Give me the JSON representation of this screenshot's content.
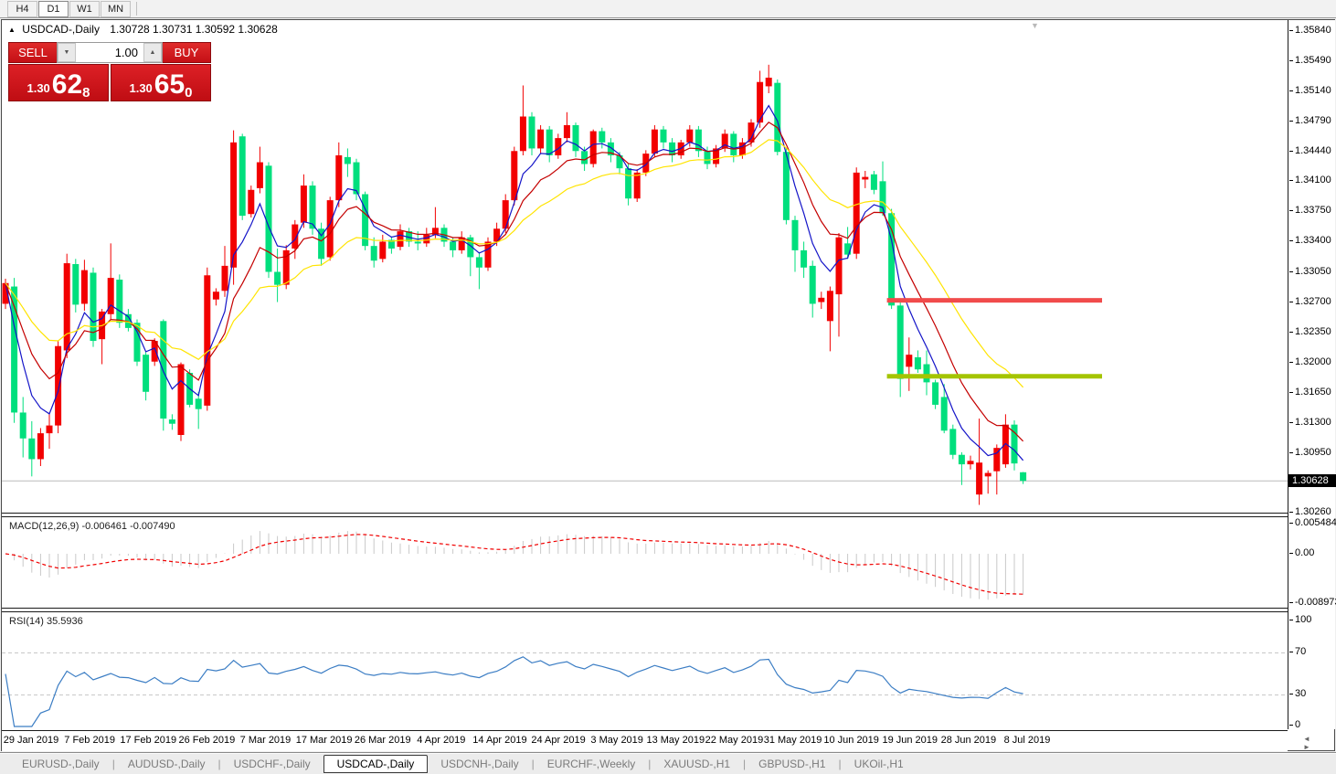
{
  "toolbar": {
    "timeframes": [
      {
        "label": "H4",
        "active": false
      },
      {
        "label": "D1",
        "active": true
      },
      {
        "label": "W1",
        "active": false
      },
      {
        "label": "MN",
        "active": false
      }
    ]
  },
  "icons": {
    "collapse": "▲",
    "chart_shift": "▼",
    "spinner_up": "▲",
    "spinner_down": "▼",
    "scroll_arrows": "◄ ►"
  },
  "window": {
    "title_symbol": "USDCAD-,Daily",
    "title_ohlc": "1.30728 1.30731 1.30592 1.30628"
  },
  "trade_panel": {
    "sell_label": "SELL",
    "buy_label": "BUY",
    "volume": "1.00",
    "sell_price": {
      "prefix": "1.30",
      "main": "62",
      "sup": "8"
    },
    "buy_price": {
      "prefix": "1.30",
      "main": "65",
      "sup": "0"
    }
  },
  "tabs": {
    "separator": "|",
    "active_index": 3,
    "items": [
      "EURUSD-,Daily",
      "AUDUSD-,Daily",
      "USDCHF-,Daily",
      "USDCAD-,Daily",
      "USDCNH-,Daily",
      "EURCHF-,Weekly",
      "XAUUSD-,H1",
      "GBPUSD-,H1",
      "UKOil-,H1"
    ]
  },
  "chart_data": {
    "type": "candlestick",
    "symbol": "USDCAD-",
    "timeframe": "Daily",
    "colors": {
      "bull": "#f20000",
      "bear": "#00df7d",
      "ma_fast": "#1414c8",
      "ma_mid": "#c40000",
      "ma_slow": "#ffe400",
      "macd_hist": "#c9c9c9",
      "macd_signal": "#f00000",
      "rsi": "#3b7dc4",
      "rsi_levels": "#c8c8c8",
      "bid_line": "#bcbcbc",
      "trend_red": "#f14b4b",
      "trend_olive": "#a4c400"
    },
    "price_axis": {
      "labels": [
        "1.35840",
        "1.35490",
        "1.35140",
        "1.34790",
        "1.34440",
        "1.34100",
        "1.33750",
        "1.33400",
        "1.33050",
        "1.32700",
        "1.32350",
        "1.32000",
        "1.31650",
        "1.31300",
        "1.30950",
        "1.30260"
      ],
      "top_value": 1.3584,
      "bottom_value": 1.3026,
      "current": "1.30628",
      "current_value": 1.30628
    },
    "time_axis": [
      "29 Jan 2019",
      "7 Feb 2019",
      "17 Feb 2019",
      "26 Feb 2019",
      "7 Mar 2019",
      "17 Mar 2019",
      "26 Mar 2019",
      "4 Apr 2019",
      "14 Apr 2019",
      "24 Apr 2019",
      "3 May 2019",
      "13 May 2019",
      "22 May 2019",
      "31 May 2019",
      "10 Jun 2019",
      "19 Jun 2019",
      "28 Jun 2019",
      "8 Jul 2019"
    ],
    "ohlc": [
      [
        1.3268,
        1.3297,
        1.3262,
        1.3292
      ],
      [
        1.3288,
        1.3298,
        1.313,
        1.3142
      ],
      [
        1.3142,
        1.316,
        1.309,
        1.3112
      ],
      [
        1.3112,
        1.3132,
        1.3068,
        1.3088
      ],
      [
        1.3088,
        1.3124,
        1.308,
        1.3118
      ],
      [
        1.3118,
        1.3142,
        1.31,
        1.3127
      ],
      [
        1.3127,
        1.3225,
        1.3118,
        1.3219
      ],
      [
        1.3214,
        1.3326,
        1.3205,
        1.3315
      ],
      [
        1.3314,
        1.332,
        1.3258,
        1.3267
      ],
      [
        1.3268,
        1.3319,
        1.326,
        1.3307
      ],
      [
        1.3304,
        1.331,
        1.3218,
        1.3225
      ],
      [
        1.3227,
        1.3262,
        1.3198,
        1.3259
      ],
      [
        1.3256,
        1.3338,
        1.325,
        1.3298
      ],
      [
        1.3296,
        1.3302,
        1.324,
        1.3246
      ],
      [
        1.3256,
        1.3262,
        1.3236,
        1.324
      ],
      [
        1.3246,
        1.325,
        1.3196,
        1.3201
      ],
      [
        1.3209,
        1.3212,
        1.3156,
        1.3166
      ],
      [
        1.3201,
        1.3228,
        1.3196,
        1.3225
      ],
      [
        1.3248,
        1.325,
        1.3121,
        1.3135
      ],
      [
        1.3134,
        1.314,
        1.3122,
        1.3129
      ],
      [
        1.3116,
        1.32,
        1.3109,
        1.3198
      ],
      [
        1.3188,
        1.3192,
        1.3148,
        1.3151
      ],
      [
        1.3158,
        1.3166,
        1.3123,
        1.3146
      ],
      [
        1.315,
        1.331,
        1.3144,
        1.3301
      ],
      [
        1.3273,
        1.3286,
        1.3266,
        1.3282
      ],
      [
        1.3283,
        1.3335,
        1.3276,
        1.3312
      ],
      [
        1.331,
        1.3469,
        1.329,
        1.3455
      ],
      [
        1.3462,
        1.3465,
        1.3365,
        1.337
      ],
      [
        1.3372,
        1.3405,
        1.3368,
        1.34
      ],
      [
        1.3402,
        1.345,
        1.3396,
        1.3432
      ],
      [
        1.3428,
        1.3432,
        1.3298,
        1.3305
      ],
      [
        1.3305,
        1.3332,
        1.327,
        1.329
      ],
      [
        1.329,
        1.3336,
        1.3285,
        1.333
      ],
      [
        1.3332,
        1.3365,
        1.332,
        1.336
      ],
      [
        1.3362,
        1.3418,
        1.3356,
        1.3405
      ],
      [
        1.3405,
        1.341,
        1.3348,
        1.3355
      ],
      [
        1.3355,
        1.3362,
        1.3312,
        1.332
      ],
      [
        1.3322,
        1.3392,
        1.3318,
        1.3388
      ],
      [
        1.3388,
        1.3455,
        1.338,
        1.344
      ],
      [
        1.3438,
        1.3448,
        1.3415,
        1.343
      ],
      [
        1.3432,
        1.3436,
        1.3388,
        1.3395
      ],
      [
        1.3395,
        1.3398,
        1.333,
        1.3335
      ],
      [
        1.3335,
        1.3345,
        1.331,
        1.3318
      ],
      [
        1.332,
        1.3348,
        1.3316,
        1.334
      ],
      [
        1.3342,
        1.3346,
        1.3326,
        1.3332
      ],
      [
        1.3334,
        1.336,
        1.333,
        1.3352
      ],
      [
        1.3352,
        1.3356,
        1.3334,
        1.334
      ],
      [
        1.334,
        1.3352,
        1.333,
        1.3338
      ],
      [
        1.3338,
        1.3356,
        1.3334,
        1.3348
      ],
      [
        1.3348,
        1.338,
        1.3344,
        1.3356
      ],
      [
        1.3356,
        1.336,
        1.3334,
        1.334
      ],
      [
        1.334,
        1.3345,
        1.3322,
        1.333
      ],
      [
        1.333,
        1.3352,
        1.3326,
        1.3345
      ],
      [
        1.3345,
        1.3348,
        1.33,
        1.3322
      ],
      [
        1.3322,
        1.3328,
        1.3285,
        1.331
      ],
      [
        1.331,
        1.3345,
        1.3306,
        1.334
      ],
      [
        1.334,
        1.3362,
        1.3335,
        1.3355
      ],
      [
        1.3355,
        1.3395,
        1.335,
        1.3388
      ],
      [
        1.3388,
        1.345,
        1.3382,
        1.3445
      ],
      [
        1.3445,
        1.3521,
        1.344,
        1.3485
      ],
      [
        1.3485,
        1.349,
        1.344,
        1.3448
      ],
      [
        1.3448,
        1.3475,
        1.3442,
        1.347
      ],
      [
        1.347,
        1.3474,
        1.3432,
        1.344
      ],
      [
        1.344,
        1.3465,
        1.3436,
        1.346
      ],
      [
        1.346,
        1.349,
        1.3455,
        1.3475
      ],
      [
        1.3475,
        1.3478,
        1.3438,
        1.3445
      ],
      [
        1.3445,
        1.345,
        1.3422,
        1.343
      ],
      [
        1.343,
        1.347,
        1.3426,
        1.3468
      ],
      [
        1.3468,
        1.3472,
        1.3448,
        1.3455
      ],
      [
        1.3455,
        1.346,
        1.3432,
        1.344
      ],
      [
        1.344,
        1.3444,
        1.3418,
        1.3425
      ],
      [
        1.3425,
        1.343,
        1.3382,
        1.339
      ],
      [
        1.339,
        1.3424,
        1.3386,
        1.342
      ],
      [
        1.342,
        1.3446,
        1.3416,
        1.3442
      ],
      [
        1.3442,
        1.3475,
        1.3438,
        1.347
      ],
      [
        1.347,
        1.3474,
        1.3448,
        1.3455
      ],
      [
        1.3455,
        1.346,
        1.3432,
        1.344
      ],
      [
        1.344,
        1.3458,
        1.3436,
        1.3455
      ],
      [
        1.3455,
        1.3475,
        1.345,
        1.347
      ],
      [
        1.347,
        1.3474,
        1.3438,
        1.3445
      ],
      [
        1.3445,
        1.345,
        1.3424,
        1.343
      ],
      [
        1.343,
        1.3452,
        1.3426,
        1.3448
      ],
      [
        1.3448,
        1.347,
        1.3444,
        1.3465
      ],
      [
        1.3465,
        1.3468,
        1.3432,
        1.344
      ],
      [
        1.344,
        1.346,
        1.3436,
        1.3455
      ],
      [
        1.3455,
        1.3482,
        1.345,
        1.3478
      ],
      [
        1.3478,
        1.3538,
        1.3472,
        1.3525
      ],
      [
        1.352,
        1.3545,
        1.3512,
        1.353
      ],
      [
        1.3524,
        1.3528,
        1.344,
        1.3444
      ],
      [
        1.3444,
        1.3448,
        1.336,
        1.3365
      ],
      [
        1.3365,
        1.337,
        1.3305,
        1.333
      ],
      [
        1.333,
        1.334,
        1.3298,
        1.331
      ],
      [
        1.3312,
        1.3318,
        1.3252,
        1.3268
      ],
      [
        1.327,
        1.3282,
        1.3262,
        1.3275
      ],
      [
        1.3248,
        1.3288,
        1.3213,
        1.3283
      ],
      [
        1.3279,
        1.335,
        1.323,
        1.3345
      ],
      [
        1.3338,
        1.3357,
        1.332,
        1.3325
      ],
      [
        1.3326,
        1.3426,
        1.332,
        1.342
      ],
      [
        1.3412,
        1.3422,
        1.3402,
        1.3415
      ],
      [
        1.3418,
        1.3422,
        1.3395,
        1.34
      ],
      [
        1.341,
        1.3433,
        1.337,
        1.3373
      ],
      [
        1.3373,
        1.3378,
        1.3262,
        1.3266
      ],
      [
        1.3266,
        1.327,
        1.316,
        1.3181
      ],
      [
        1.3195,
        1.3229,
        1.3167,
        1.3209
      ],
      [
        1.3206,
        1.3214,
        1.3188,
        1.3192
      ],
      [
        1.3198,
        1.3214,
        1.3162,
        1.3177
      ],
      [
        1.3177,
        1.318,
        1.3146,
        1.3151
      ],
      [
        1.316,
        1.3175,
        1.3118,
        1.3121
      ],
      [
        1.3123,
        1.3128,
        1.3088,
        1.3093
      ],
      [
        1.3093,
        1.3096,
        1.3058,
        1.3082
      ],
      [
        1.3082,
        1.3092,
        1.3076,
        1.3086
      ],
      [
        1.3047,
        1.3135,
        1.3035,
        1.3084
      ],
      [
        1.3068,
        1.3075,
        1.3048,
        1.3072
      ],
      [
        1.3074,
        1.3105,
        1.3047,
        1.3101
      ],
      [
        1.3082,
        1.314,
        1.3078,
        1.3128
      ],
      [
        1.3128,
        1.3133,
        1.3075,
        1.3083
      ],
      [
        1.30728,
        1.30731,
        1.30592,
        1.30628
      ]
    ],
    "moving_averages": [
      {
        "name": "ma-fast",
        "period": 5,
        "method": "ema",
        "color_key": "ma_fast"
      },
      {
        "name": "ma-mid",
        "period": 10,
        "method": "ema",
        "color_key": "ma_mid"
      },
      {
        "name": "ma-slow",
        "period": 21,
        "method": "ema",
        "color_key": "ma_slow"
      }
    ],
    "trendlines": [
      {
        "name": "resistance",
        "price": 1.3272,
        "from_bar": 101,
        "to_bar": 125,
        "color_key": "trend_red"
      },
      {
        "name": "support",
        "price": 1.3184,
        "from_bar": 101,
        "to_bar": 125,
        "color_key": "trend_olive"
      }
    ],
    "indicators": {
      "macd": {
        "label": "MACD(12,26,9) -0.006461 -0.007490",
        "fast": 12,
        "slow": 26,
        "signal_period": 9,
        "value": -0.006461,
        "signal_value": -0.00749,
        "axis_labels": [
          "0.005484",
          "0.00",
          "-0.008973"
        ],
        "axis_top": 0.005484,
        "axis_bottom": -0.008973
      },
      "rsi": {
        "label": "RSI(14) 35.5936",
        "period": 14,
        "value": 35.5936,
        "levels": [
          70,
          30
        ],
        "axis_labels": [
          "100",
          "70",
          "30",
          "0"
        ]
      }
    }
  }
}
